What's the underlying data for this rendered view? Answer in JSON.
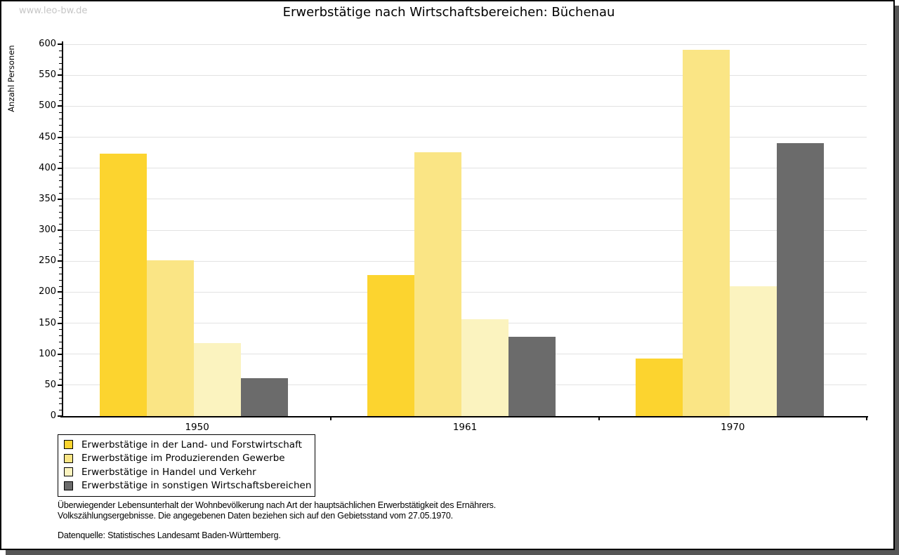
{
  "watermark": "www.leo-bw.de",
  "title": "Erwerbstätige nach Wirtschaftsbereichen: Büchenau",
  "chart_data": {
    "type": "bar",
    "title": "Erwerbstätige nach Wirtschaftsbereichen: Büchenau",
    "xlabel": "",
    "ylabel": "Anzahl Personen",
    "ylim": [
      0,
      600
    ],
    "ytick_step": 50,
    "ytick_minor_step": 10,
    "yticks": [
      0,
      50,
      100,
      150,
      200,
      250,
      300,
      350,
      400,
      450,
      500,
      550,
      600
    ],
    "grid": true,
    "gridline_color": "#e2e2e2",
    "legend_position": "bottom-left",
    "categories": [
      "1950",
      "1961",
      "1970"
    ],
    "series": [
      {
        "name": "Erwerbstätige in der Land- und Forstwirtschaft",
        "color": "#FCD42F",
        "values": [
          423,
          227,
          93
        ]
      },
      {
        "name": "Erwerbstätige im Produzierenden Gewerbe",
        "color": "#FAE585",
        "values": [
          251,
          426,
          591
        ]
      },
      {
        "name": "Erwerbstätige in Handel und Verkehr",
        "color": "#FBF3BF",
        "values": [
          118,
          156,
          209
        ]
      },
      {
        "name": "Erwerbstätige in sonstigen Wirtschaftsbereichen",
        "color": "#6B6B6B",
        "values": [
          61,
          128,
          440
        ]
      }
    ]
  },
  "notes": {
    "line1": "Überwiegender Lebensunterhalt der Wohnbevölkerung nach Art der hauptsächlichen Erwerbstätigkeit des Ernährers.",
    "line2": "Volkszählungsergebnisse. Die angegebenen Daten beziehen sich auf den Gebietsstand vom 27.05.1970.",
    "source": "Datenquelle: Statistisches Landesamt Baden-Württemberg."
  }
}
